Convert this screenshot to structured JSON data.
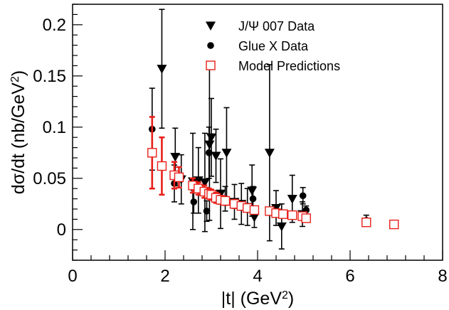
{
  "chart_data": {
    "type": "scatter",
    "xlabel_parts": {
      "main": "|t| (GeV",
      "sup": "2",
      "tail": ")"
    },
    "ylabel_parts": {
      "main": "dσ/dt (nb/GeV",
      "sup": "2",
      "tail": ")"
    },
    "xlim": [
      0,
      8
    ],
    "ylim": [
      -0.03,
      0.22
    ],
    "x_ticks": [
      "0",
      "2",
      "4",
      "6",
      "8"
    ],
    "x_tick_values": [
      0,
      2,
      4,
      6,
      8
    ],
    "y_ticks": [
      "0",
      "0.05",
      "0.1",
      "0.15",
      "0.2"
    ],
    "y_tick_values": [
      0,
      0.05,
      0.1,
      0.15,
      0.2
    ],
    "legend_position": "top-center",
    "series": [
      {
        "name": "J/Ψ 007 Data",
        "marker": "triangle-down",
        "color": "#000000",
        "points": [
          {
            "x": 1.93,
            "y": 0.157,
            "err": 0.058
          },
          {
            "x": 2.22,
            "y": 0.071,
            "err": 0.028
          },
          {
            "x": 2.35,
            "y": 0.049,
            "err": 0.024
          },
          {
            "x": 2.6,
            "y": 0.047,
            "err": 0.047
          },
          {
            "x": 2.72,
            "y": 0.048,
            "err": 0.032
          },
          {
            "x": 2.86,
            "y": 0.046,
            "err": 0.048
          },
          {
            "x": 2.96,
            "y": 0.083,
            "err": 0.074
          },
          {
            "x": 3.0,
            "y": 0.09,
            "err": 0.038
          },
          {
            "x": 3.1,
            "y": 0.072,
            "err": 0.026
          },
          {
            "x": 3.2,
            "y": 0.035,
            "err": 0.034
          },
          {
            "x": 3.33,
            "y": 0.075,
            "err": 0.044
          },
          {
            "x": 3.5,
            "y": 0.027,
            "err": 0.017
          },
          {
            "x": 3.65,
            "y": 0.025,
            "err": 0.02
          },
          {
            "x": 3.78,
            "y": 0.022,
            "err": 0.018
          },
          {
            "x": 3.88,
            "y": 0.038,
            "err": 0.025
          },
          {
            "x": 3.93,
            "y": 0.012,
            "err": 0.01
          },
          {
            "x": 4.26,
            "y": 0.075,
            "err": 0.086
          },
          {
            "x": 4.4,
            "y": 0.021,
            "err": 0.017
          },
          {
            "x": 4.52,
            "y": 0.003,
            "err": 0.022
          },
          {
            "x": 4.75,
            "y": 0.03,
            "err": 0.023
          },
          {
            "x": 4.97,
            "y": 0.015,
            "err": 0.012
          }
        ]
      },
      {
        "name": "Glue X Data",
        "marker": "circle",
        "color": "#000000",
        "points": [
          {
            "x": 1.72,
            "y": 0.098,
            "err": 0.04
          },
          {
            "x": 2.2,
            "y": 0.045,
            "err": 0.018
          },
          {
            "x": 2.62,
            "y": 0.027,
            "err": 0.011
          },
          {
            "x": 2.9,
            "y": 0.018,
            "err": 0.01
          },
          {
            "x": 2.95,
            "y": 0.075,
            "err": 0.025
          },
          {
            "x": 3.3,
            "y": 0.03,
            "err": 0.012
          },
          {
            "x": 3.9,
            "y": 0.03,
            "err": 0.012
          },
          {
            "x": 4.98,
            "y": 0.033,
            "err": 0.008
          },
          {
            "x": 5.05,
            "y": 0.019,
            "err": 0.004
          },
          {
            "x": 6.35,
            "y": 0.009,
            "err": 0.005
          },
          {
            "x": 6.95,
            "y": 0.006,
            "err": 0.002
          }
        ]
      },
      {
        "name": "Model Predictions",
        "marker": "square-open",
        "color": "#e8201a",
        "points": [
          {
            "x": 1.72,
            "y": 0.075,
            "err": 0.035
          },
          {
            "x": 1.93,
            "y": 0.062,
            "err": 0.028
          },
          {
            "x": 2.2,
            "y": 0.053,
            "err": 0.013
          },
          {
            "x": 2.3,
            "y": 0.051,
            "err": 0.01
          },
          {
            "x": 2.6,
            "y": 0.043,
            "err": 0.007
          },
          {
            "x": 2.72,
            "y": 0.04,
            "err": 0.006
          },
          {
            "x": 2.85,
            "y": 0.037,
            "err": 0.006
          },
          {
            "x": 2.95,
            "y": 0.035,
            "err": 0.005
          },
          {
            "x": 3.0,
            "y": 0.034,
            "err": 0.005
          },
          {
            "x": 3.1,
            "y": 0.031,
            "err": 0.005
          },
          {
            "x": 3.2,
            "y": 0.029,
            "err": 0.004
          },
          {
            "x": 3.3,
            "y": 0.028,
            "err": 0.004
          },
          {
            "x": 3.5,
            "y": 0.025,
            "err": 0.004
          },
          {
            "x": 3.65,
            "y": 0.023,
            "err": 0.003
          },
          {
            "x": 3.78,
            "y": 0.021,
            "err": 0.003
          },
          {
            "x": 3.93,
            "y": 0.019,
            "err": 0.003
          },
          {
            "x": 4.26,
            "y": 0.018,
            "err": 0.003
          },
          {
            "x": 4.4,
            "y": 0.016,
            "err": 0.003
          },
          {
            "x": 4.55,
            "y": 0.015,
            "err": 0.002
          },
          {
            "x": 4.75,
            "y": 0.014,
            "err": 0.002
          },
          {
            "x": 4.97,
            "y": 0.013,
            "err": 0.002
          },
          {
            "x": 5.05,
            "y": 0.011,
            "err": 0.002
          },
          {
            "x": 6.35,
            "y": 0.007,
            "err": 0.001
          },
          {
            "x": 6.95,
            "y": 0.005,
            "err": 0.001
          }
        ]
      }
    ]
  }
}
